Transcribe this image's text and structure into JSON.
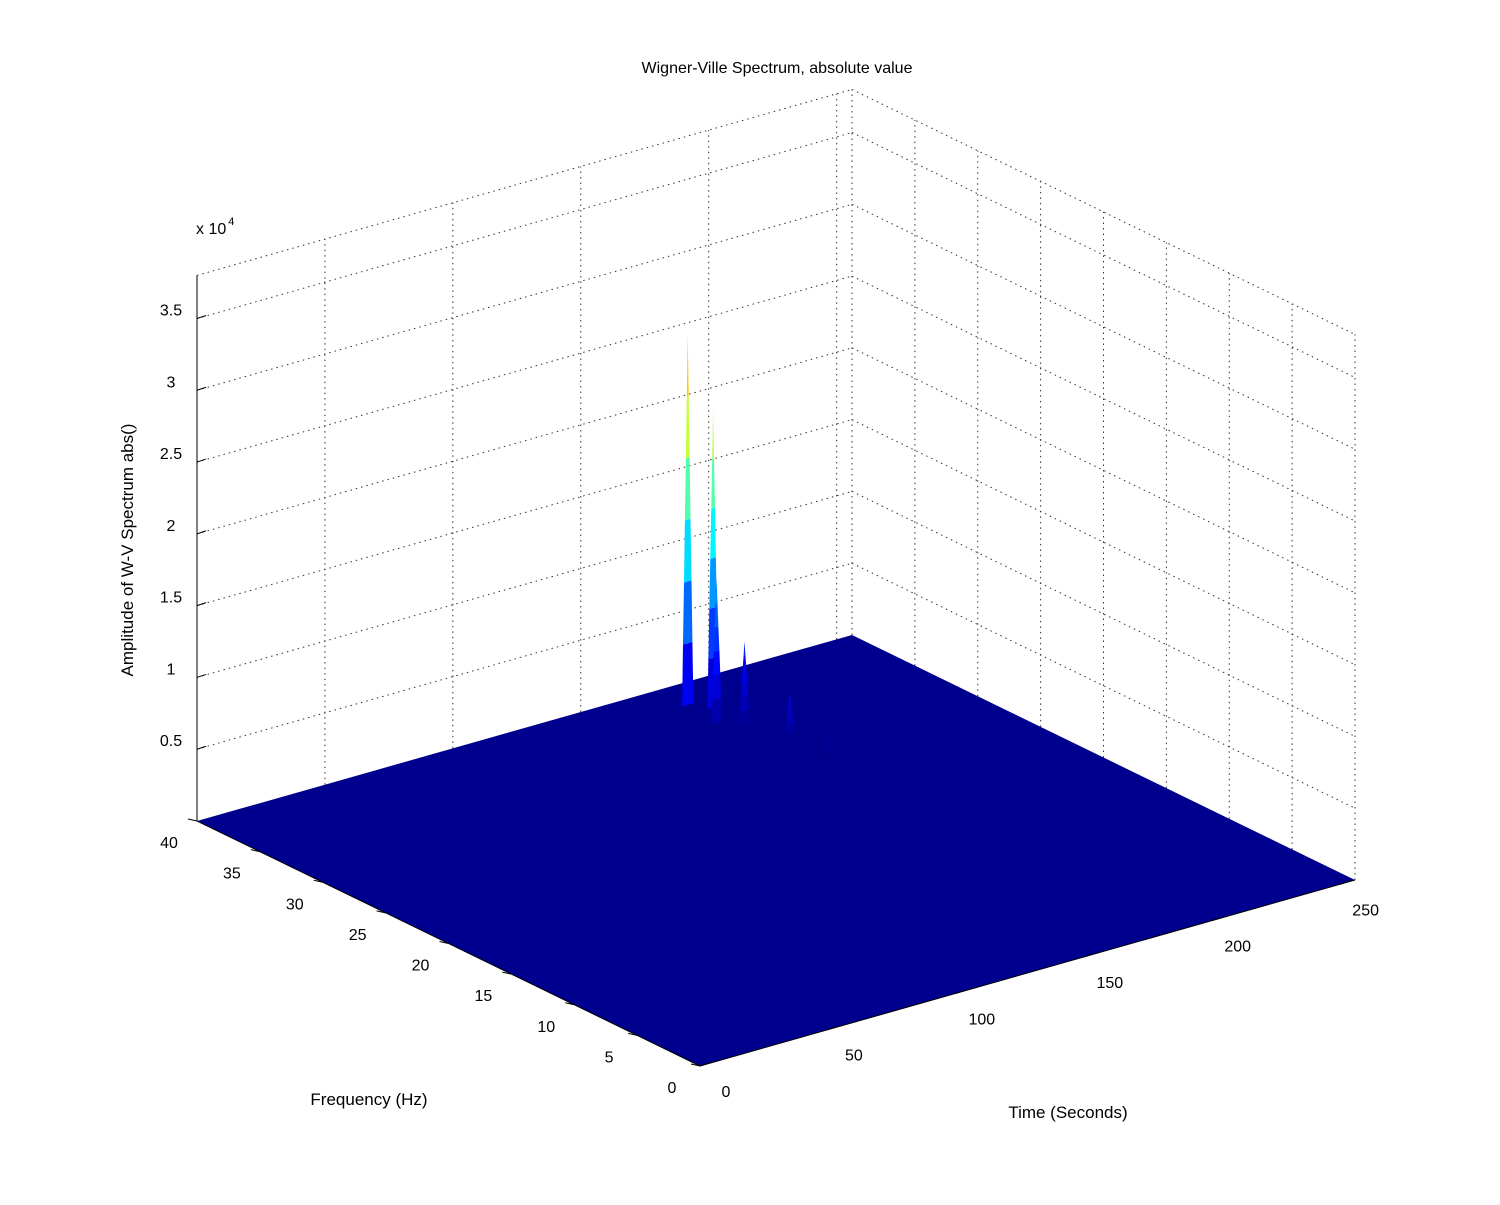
{
  "chart_data": {
    "type": "surface",
    "title": "Wigner-Ville Spectrum, absolute value",
    "xlabel": "Time (Seconds)",
    "ylabel": "Frequency (Hz)",
    "zlabel": "Amplitude of W-V Spectrum abs()",
    "z_exponent_label": {
      "base": "x 10",
      "exponent": "4"
    },
    "xlim": [
      0,
      256
    ],
    "ylim": [
      0,
      40
    ],
    "zlim": [
      0,
      38000
    ],
    "x_ticks": [
      "0",
      "50",
      "100",
      "150",
      "200",
      "250"
    ],
    "y_ticks": [
      "0",
      "5",
      "10",
      "15",
      "20",
      "25",
      "30",
      "35",
      "40"
    ],
    "z_ticks": [
      "0.5",
      "1",
      "1.5",
      "2",
      "2.5",
      "3",
      "3.5"
    ],
    "grid": true,
    "colormap": "jet",
    "surface_base_color": "#00008f",
    "peaks": [
      {
        "time": 180,
        "frequency": 37.6,
        "amplitude": 25800
      },
      {
        "time": 185,
        "frequency": 36.6,
        "amplitude": 20800
      },
      {
        "time": 178,
        "frequency": 34.9,
        "amplitude": 10000
      },
      {
        "time": 184,
        "frequency": 33.9,
        "amplitude": 5800
      },
      {
        "time": 187,
        "frequency": 30.9,
        "amplitude": 3500
      },
      {
        "time": 188,
        "frequency": 28.0,
        "amplitude": 1500
      }
    ]
  }
}
